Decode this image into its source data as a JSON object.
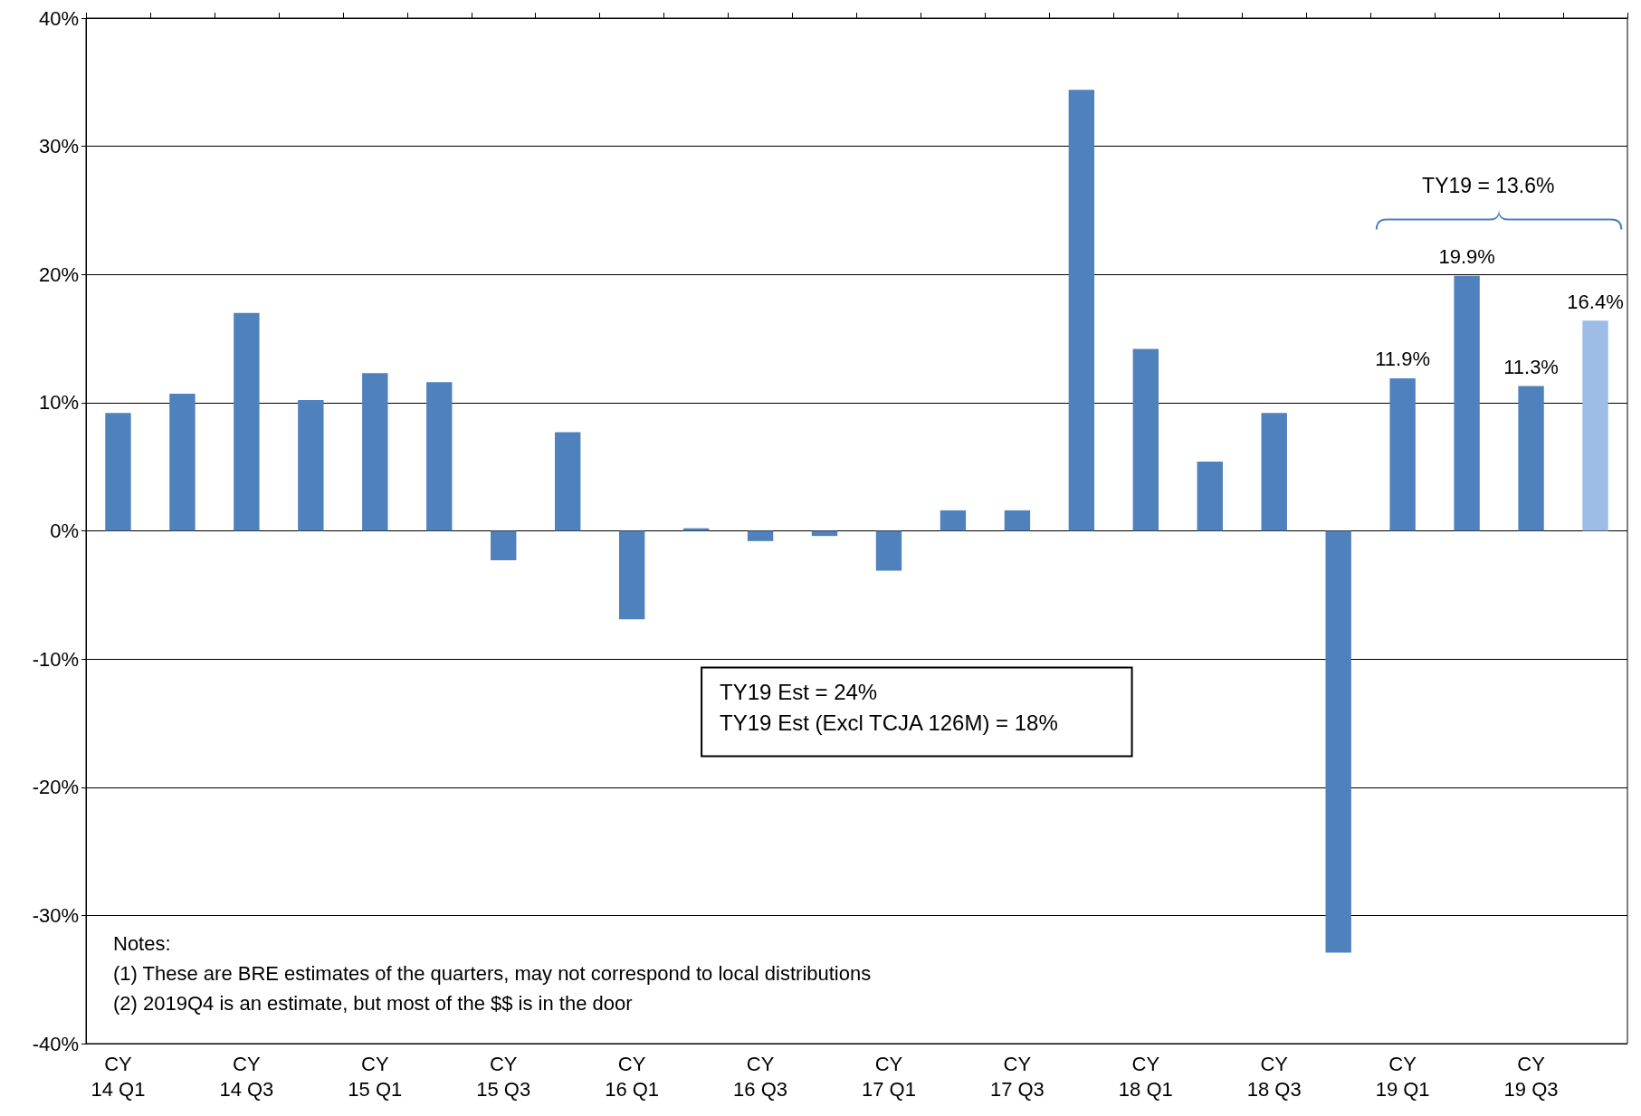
{
  "chart_data": {
    "type": "bar",
    "categories": [
      "CY\n14 Q1",
      null,
      "CY\n14 Q3",
      null,
      "CY\n15 Q1",
      null,
      "CY\n15 Q3",
      null,
      "CY\n16 Q1",
      null,
      "CY\n16 Q3",
      null,
      "CY\n17 Q1",
      null,
      "CY\n17 Q3",
      null,
      "CY\n18 Q1",
      null,
      "CY\n18 Q3",
      null,
      "CY\n19 Q1",
      null,
      "CY\n19 Q3",
      null
    ],
    "values": [
      9.2,
      10.7,
      17.0,
      10.2,
      12.3,
      11.6,
      -2.3,
      7.7,
      -6.9,
      0.2,
      -0.8,
      -0.4,
      -3.1,
      1.6,
      1.6,
      34.4,
      14.2,
      5.4,
      9.2,
      -32.9,
      11.9,
      19.9,
      11.3,
      16.4
    ],
    "colors": [
      "#4f81bd",
      "#4f81bd",
      "#4f81bd",
      "#4f81bd",
      "#4f81bd",
      "#4f81bd",
      "#4f81bd",
      "#4f81bd",
      "#4f81bd",
      "#4f81bd",
      "#4f81bd",
      "#4f81bd",
      "#4f81bd",
      "#4f81bd",
      "#4f81bd",
      "#4f81bd",
      "#4f81bd",
      "#4f81bd",
      "#4f81bd",
      "#4f81bd",
      "#4f81bd",
      "#4f81bd",
      "#4f81bd",
      "#9cbde6"
    ],
    "value_labels": [
      null,
      null,
      null,
      null,
      null,
      null,
      null,
      null,
      null,
      null,
      null,
      null,
      null,
      null,
      null,
      null,
      null,
      null,
      null,
      null,
      "11.9%",
      "19.9%",
      "11.3%",
      "16.4%"
    ],
    "ylim": [
      -40,
      40
    ],
    "yticks": [
      {
        "value": -40,
        "label": "-40%"
      },
      {
        "value": -30,
        "label": "-30%"
      },
      {
        "value": -20,
        "label": "-20%"
      },
      {
        "value": -10,
        "label": "-10%"
      },
      {
        "value": 0,
        "label": "0%"
      },
      {
        "value": 10,
        "label": "10%"
      },
      {
        "value": 20,
        "label": "20%"
      },
      {
        "value": 30,
        "label": "30%"
      },
      {
        "value": 40,
        "label": "40%"
      }
    ],
    "grid": "y",
    "annotations": [
      "TY19 = 13.6%",
      "TY19 Est = 24%\nTY19 Est (Excl TCJA 126M) = 18%",
      "Notes:\n(1) These are BRE estimates of the quarters, may not correspond to local distributions\n(2) 2019Q4 is an estimate, but most of the $$ is in the door"
    ]
  }
}
